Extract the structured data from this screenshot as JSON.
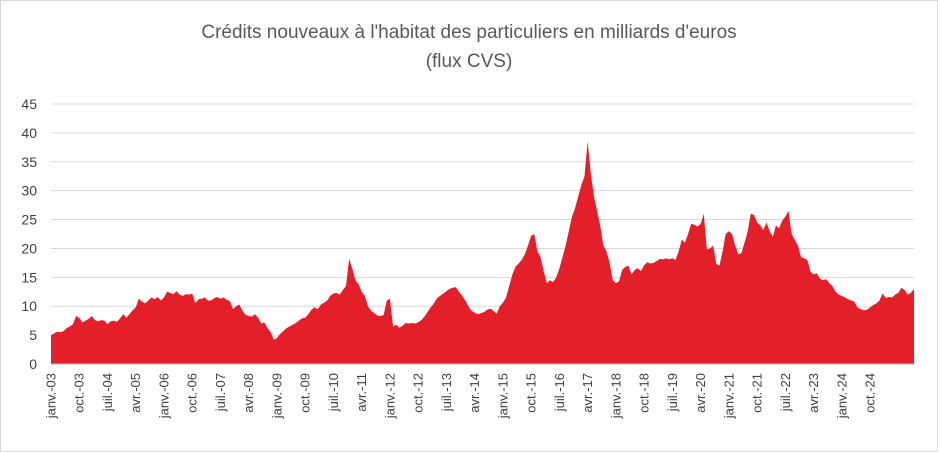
{
  "chart_data": {
    "type": "area",
    "title": "Crédits nouveaux à l'habitat des particuliers en milliards d'euros",
    "subtitle": "(flux CVS)",
    "xlabel": "",
    "ylabel": "",
    "ylim": [
      0,
      45
    ],
    "yticks": [
      0,
      5,
      10,
      15,
      20,
      25,
      30,
      35,
      40,
      45
    ],
    "grid": true,
    "color": "#e3202a",
    "x_start": "janv.-03",
    "x_end": "déc.-24",
    "xtick_labels": [
      "janv.-03",
      "oct.-03",
      "juil.-04",
      "avr.-05",
      "janv.-06",
      "oct.-06",
      "juil.-07",
      "avr.-08",
      "janv.-09",
      "oct.-09",
      "juil.-10",
      "avr.-11",
      "janv.-12",
      "oct.-12",
      "juil.-13",
      "avr.-14",
      "janv.-15",
      "oct.-15",
      "juil.-16",
      "avr.-17",
      "janv.-18",
      "oct.-18",
      "juil.-19",
      "avr.-20",
      "janv.-21",
      "oct.-21",
      "juil.-22",
      "avr.-23",
      "janv.-24",
      "oct.-24"
    ],
    "series": [
      {
        "values": [
          5.0,
          5.3,
          5.6,
          5.5,
          5.7,
          6.2,
          6.5,
          6.9,
          8.3,
          8.0,
          7.2,
          7.5,
          7.8,
          8.3,
          7.6,
          7.4,
          7.6,
          7.5,
          6.9,
          7.4,
          7.5,
          7.3,
          7.9,
          8.6,
          8.0,
          8.6,
          9.3,
          9.8,
          11.3,
          10.8,
          10.5,
          11.0,
          11.5,
          11.2,
          11.6,
          11.0,
          11.5,
          12.5,
          12.3,
          12.1,
          12.6,
          12.0,
          11.8,
          12.1,
          12.0,
          12.2,
          10.5,
          11.2,
          11.3,
          11.5,
          11.0,
          11.0,
          11.4,
          11.6,
          11.3,
          11.5,
          11.1,
          10.9,
          9.5,
          10.0,
          10.3,
          9.2,
          8.5,
          8.3,
          8.2,
          8.6,
          8.0,
          7.0,
          7.2,
          6.2,
          5.5,
          4.2,
          4.5,
          5.2,
          5.7,
          6.2,
          6.5,
          6.8,
          7.1,
          7.5,
          7.9,
          8.0,
          8.6,
          9.4,
          9.8,
          9.5,
          10.3,
          10.6,
          11.0,
          11.8,
          12.2,
          12.3,
          12.0,
          12.8,
          13.5,
          18.2,
          16.5,
          14.5,
          13.8,
          12.5,
          11.8,
          10.0,
          9.2,
          8.8,
          8.4,
          8.3,
          8.5,
          11.0,
          11.3,
          6.5,
          6.8,
          6.3,
          6.6,
          7.1,
          7.0,
          7.1,
          7.0,
          7.2,
          7.6,
          8.2,
          9.0,
          9.8,
          10.5,
          11.4,
          11.8,
          12.2,
          12.6,
          13.0,
          13.2,
          13.3,
          12.5,
          11.8,
          11.0,
          10.0,
          9.2,
          8.9,
          8.6,
          8.8,
          9.0,
          9.4,
          9.6,
          9.2,
          8.7,
          10.0,
          10.6,
          11.5,
          13.5,
          15.5,
          16.8,
          17.4,
          18.0,
          19.0,
          20.5,
          22.2,
          22.5,
          19.5,
          18.5,
          16.0,
          14.0,
          14.5,
          14.2,
          15.0,
          16.5,
          18.5,
          20.5,
          23.0,
          25.5,
          27.0,
          29.0,
          31.0,
          32.5,
          38.5,
          33.0,
          29.0,
          26.5,
          24.0,
          20.5,
          19.5,
          17.5,
          14.5,
          14.0,
          14.3,
          16.3,
          16.8,
          17.0,
          15.5,
          16.3,
          16.6,
          16.1,
          17.1,
          17.6,
          17.4,
          17.5,
          17.8,
          18.2,
          18.1,
          18.3,
          18.1,
          18.3,
          18.0,
          19.5,
          21.5,
          21.0,
          22.5,
          24.3,
          24.1,
          23.8,
          24.2,
          26.0,
          19.8,
          20.0,
          20.5,
          17.3,
          17.0,
          19.5,
          22.5,
          23.0,
          22.5,
          20.5,
          19.0,
          19.2,
          21.0,
          23.0,
          26.0,
          25.8,
          24.5,
          24.0,
          23.2,
          24.5,
          23.0,
          22.0,
          24.0,
          23.5,
          24.8,
          25.5,
          26.5,
          22.5,
          21.5,
          20.5,
          18.5,
          18.3,
          18.0,
          16.0,
          15.5,
          15.7,
          14.8,
          14.5,
          14.7,
          14.0,
          13.5,
          12.5,
          12.0,
          11.8,
          11.5,
          11.2,
          11.0,
          10.8,
          9.8,
          9.5,
          9.3,
          9.4,
          9.8,
          10.2,
          10.5,
          11.0,
          12.2,
          11.4,
          11.6,
          11.5,
          12.0,
          12.3,
          13.2,
          12.8,
          12.0,
          12.3,
          13.0
        ]
      }
    ]
  }
}
